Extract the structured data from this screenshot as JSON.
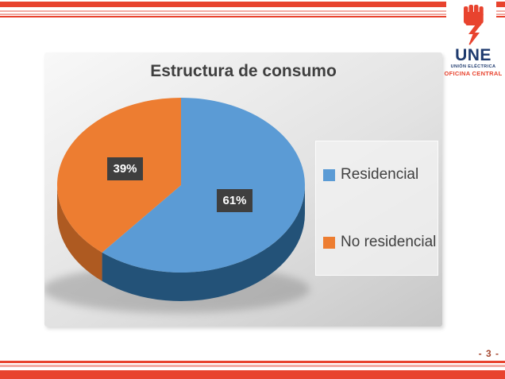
{
  "slide": {
    "stripe_red": "#E8432E",
    "stripe_pink": "#F2ACA4",
    "navy": "#1E3A6E"
  },
  "logo": {
    "name": "UNE",
    "subtitle": "UNIÓN ELÉCTRICA",
    "subtitle2": "OFICINA CENTRAL"
  },
  "footer": {
    "page_label": "- 3 -"
  },
  "chart_data": {
    "type": "pie",
    "title": "Estructura de consumo",
    "effect": "3d",
    "direction": "clockwise",
    "start_angle_deg": 0,
    "legend_position": "right",
    "data_labels": "percent",
    "series": [
      {
        "name": "Residencial",
        "value": 61,
        "label": "61%",
        "color": "#5B9BD5",
        "side_color": "#235278"
      },
      {
        "name": "No residencial",
        "value": 39,
        "label": "39%",
        "color": "#ED7D31",
        "side_color": "#AE5A21"
      }
    ]
  }
}
